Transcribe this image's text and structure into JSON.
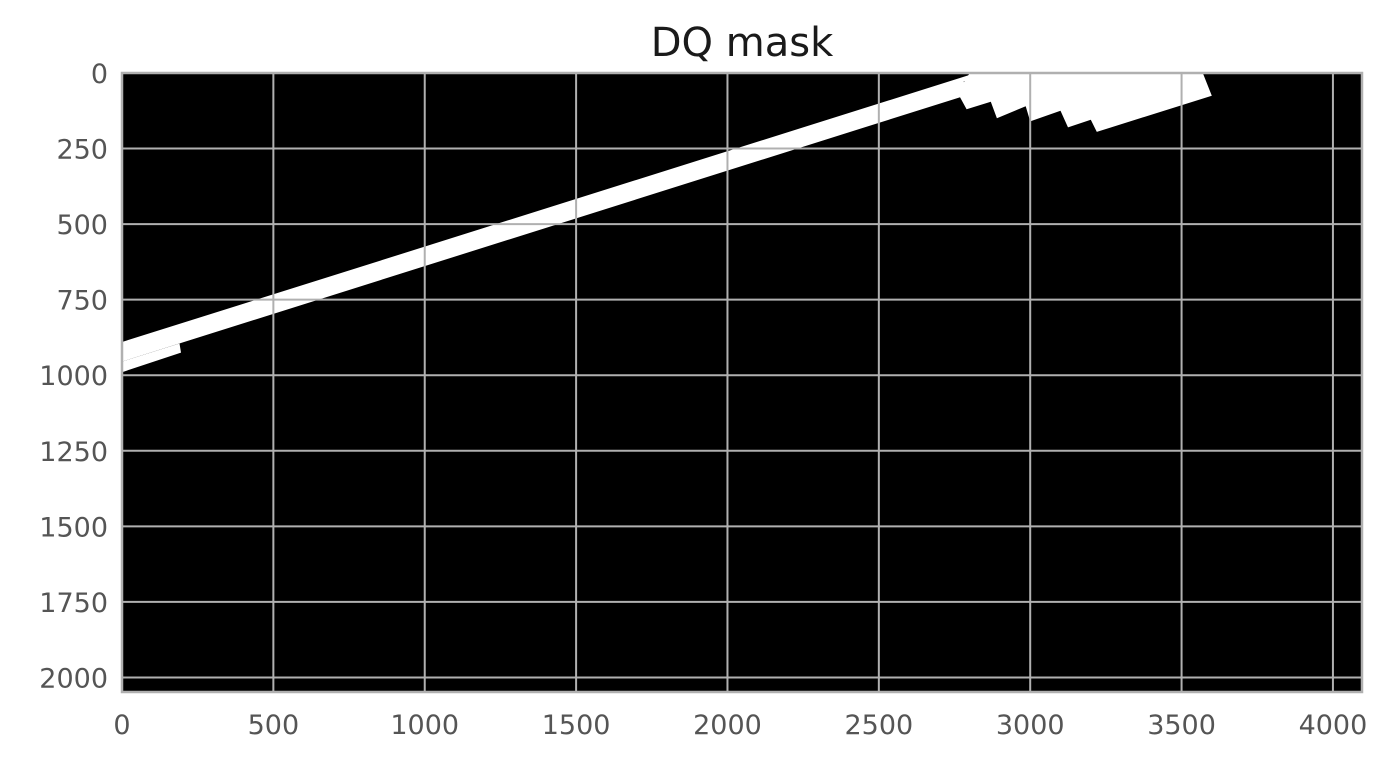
{
  "chart_data": {
    "type": "heatmap",
    "title": "DQ mask",
    "xlabel": "",
    "ylabel": "",
    "xlim": [
      0,
      4096
    ],
    "ylim": [
      2048,
      0
    ],
    "x_ticks": [
      0,
      500,
      1000,
      1500,
      2000,
      2500,
      3000,
      3500,
      4000
    ],
    "x_tick_labels": [
      "0",
      "500",
      "1000",
      "1500",
      "2000",
      "2500",
      "3000",
      "3500",
      "4000"
    ],
    "y_ticks": [
      0,
      250,
      500,
      750,
      1000,
      1250,
      1500,
      1750,
      2000
    ],
    "y_tick_labels": [
      "0",
      "250",
      "500",
      "750",
      "1000",
      "1250",
      "1500",
      "1750",
      "2000"
    ],
    "grid": true,
    "colormap": "binary (0 = black, 1 = white)",
    "background_value": 0,
    "masked_value": 1,
    "masked_regions": [
      {
        "name": "primary-streak",
        "polygon": [
          [
            0,
            890
          ],
          [
            2820,
            0
          ],
          [
            2870,
            0
          ],
          [
            2780,
            28
          ],
          [
            2800,
            70
          ],
          [
            0,
            955
          ]
        ]
      },
      {
        "name": "secondary-streak",
        "polygon": [
          [
            0,
            955
          ],
          [
            190,
            895
          ],
          [
            195,
            925
          ],
          [
            0,
            990
          ]
        ]
      },
      {
        "name": "saturated-block",
        "polygon": [
          [
            2800,
            0
          ],
          [
            3570,
            0
          ],
          [
            3600,
            75
          ],
          [
            3220,
            195
          ],
          [
            3200,
            155
          ],
          [
            3125,
            180
          ],
          [
            3100,
            125
          ],
          [
            3000,
            160
          ],
          [
            2985,
            110
          ],
          [
            2890,
            150
          ],
          [
            2870,
            95
          ],
          [
            2790,
            120
          ],
          [
            2760,
            65
          ]
        ]
      }
    ],
    "colors": {
      "background": "#000000",
      "mask": "#ffffff",
      "grid": "#b0b0b0",
      "frame": "#b0b0b0",
      "tick_text": "#555555",
      "title_text": "#1a1a1a"
    }
  }
}
